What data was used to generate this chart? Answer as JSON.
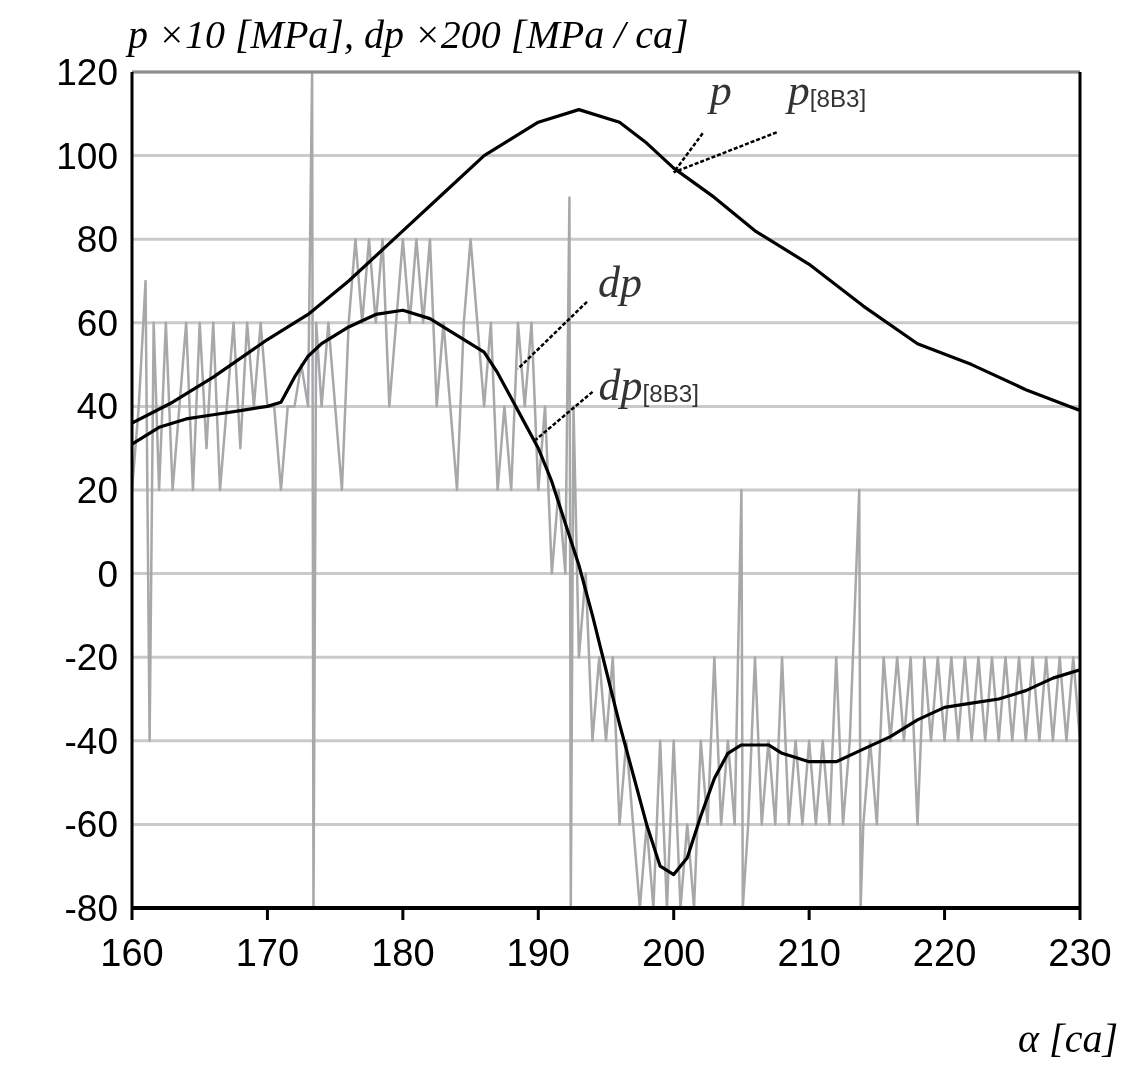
{
  "chart_data": {
    "type": "line",
    "ylabel": "p ×10 [MPa], dp ×200 [MPa / ca]",
    "xlabel": "α [ca]",
    "xlim": [
      160,
      230
    ],
    "ylim": [
      -80,
      120
    ],
    "xticks": [
      160,
      170,
      180,
      190,
      200,
      210,
      220,
      230
    ],
    "yticks": [
      -80,
      -60,
      -40,
      -20,
      0,
      20,
      40,
      60,
      80,
      100,
      120
    ],
    "grid": "y",
    "series": [
      {
        "color": "#a6a8aa",
        "x": [
          160,
          160.5,
          161,
          161.3,
          161.6,
          162,
          162.5,
          163,
          163.5,
          164,
          164.5,
          165,
          165.5,
          166,
          166.5,
          167,
          167.5,
          168,
          168.5,
          169,
          169.5,
          170,
          170.5,
          171,
          171.5,
          172,
          172.5,
          173,
          173.3,
          173.4,
          173.6,
          174,
          174.5,
          175,
          175.5,
          176,
          176.5,
          177,
          177.5,
          178,
          178.5,
          179,
          179.5,
          180,
          180.5,
          181,
          181.5,
          182,
          182.5,
          183,
          183.5,
          184,
          184.5,
          185,
          185.5,
          186,
          186.5,
          187,
          187.5,
          188,
          188.5,
          189,
          189.5,
          190,
          190.5,
          191,
          191.5,
          192,
          192.3,
          192.4,
          192.6,
          193,
          193.5,
          194,
          194.5,
          195,
          195.5,
          196,
          196.5,
          197,
          197.5,
          198,
          198.5,
          199,
          199.5,
          200,
          200.5,
          201,
          201.5,
          202,
          202.5,
          203,
          203.5,
          204,
          204.5,
          205,
          205.1,
          205.5,
          206,
          206.5,
          207,
          207.5,
          208,
          208.5,
          209,
          209.5,
          210,
          210.5,
          211,
          211.5,
          212,
          212.5,
          213,
          213.7,
          213.8,
          214,
          214.5,
          215,
          215.5,
          216,
          216.5,
          217,
          217.5,
          218,
          218.5,
          219,
          219.5,
          220,
          220.5,
          221,
          221.5,
          222,
          222.5,
          223,
          223.5,
          224,
          224.5,
          225,
          225.5,
          226,
          226.5,
          227,
          227.5,
          228,
          228.5,
          229,
          229.5,
          230
        ],
        "values": [
          20,
          40,
          70,
          -40,
          60,
          20,
          60,
          20,
          40,
          60,
          20,
          60,
          30,
          60,
          20,
          40,
          60,
          30,
          60,
          40,
          60,
          40,
          40,
          20,
          40,
          40,
          50,
          40,
          120,
          -80,
          60,
          40,
          60,
          40,
          20,
          60,
          80,
          60,
          80,
          60,
          80,
          40,
          60,
          80,
          60,
          80,
          60,
          80,
          40,
          60,
          40,
          20,
          60,
          80,
          60,
          40,
          60,
          20,
          40,
          20,
          60,
          40,
          60,
          20,
          40,
          0,
          20,
          0,
          90,
          -80,
          40,
          -20,
          0,
          -40,
          -20,
          -40,
          -20,
          -60,
          -40,
          -60,
          -80,
          -60,
          -80,
          -40,
          -80,
          -40,
          -80,
          -60,
          -80,
          -40,
          -60,
          -20,
          -60,
          -40,
          -60,
          20,
          -80,
          -60,
          -20,
          -60,
          -40,
          -60,
          -20,
          -60,
          -40,
          -60,
          -40,
          -60,
          -40,
          -60,
          -20,
          -60,
          -40,
          20,
          -80,
          -60,
          -40,
          -60,
          -20,
          -40,
          -20,
          -40,
          -20,
          -60,
          -20,
          -40,
          -20,
          -40,
          -20,
          -40,
          -20,
          -40,
          -20,
          -40,
          -20,
          -40,
          -20,
          -40,
          -20,
          -40,
          -20,
          -40,
          -20,
          -40,
          -20,
          -40,
          -20,
          -40
        ]
      },
      {
        "color": "#000000",
        "x": [
          160,
          162,
          164,
          166,
          168,
          170,
          171,
          172,
          173,
          174,
          176,
          178,
          180,
          182,
          184,
          186,
          187,
          188,
          189,
          190,
          191,
          192,
          193,
          194,
          195,
          196,
          197,
          198,
          199,
          200,
          201,
          202,
          203,
          204,
          205,
          207,
          208,
          210,
          212,
          214,
          216,
          218,
          220,
          222,
          224,
          226,
          228,
          230
        ],
        "values": [
          31,
          35,
          37,
          38,
          39,
          40,
          41,
          47,
          52,
          55,
          59,
          62,
          63,
          61,
          57,
          53,
          48,
          42,
          36,
          30,
          22,
          12,
          2,
          -10,
          -23,
          -36,
          -48,
          -60,
          -70,
          -72,
          -68,
          -58,
          -49,
          -43,
          -41,
          -41,
          -43,
          -45,
          -45,
          -42,
          -39,
          -35,
          -32,
          -31,
          -30,
          -28,
          -25,
          -23
        ]
      },
      {
        "color": "#000000",
        "x": [
          160,
          163,
          166,
          170,
          173,
          176,
          180,
          183,
          186,
          188,
          190,
          193,
          196,
          198,
          200,
          203,
          206,
          210,
          214,
          218,
          222,
          226,
          230
        ],
        "values": [
          36,
          41,
          47,
          56,
          62,
          70,
          82,
          91,
          100,
          104,
          108,
          111,
          108,
          103,
          97,
          90,
          82,
          74,
          64,
          55,
          50,
          44,
          39
        ]
      }
    ],
    "annotations": [
      {
        "text": "p",
        "x": 200,
        "y": 96
      },
      {
        "text": "p$_{[8B3]}$",
        "x": 200,
        "y": 96
      },
      {
        "text": "dp",
        "x": 188.5,
        "y": 49
      },
      {
        "text": "dp$_{[8B3]}$",
        "x": 189.8,
        "y": 32
      }
    ]
  }
}
